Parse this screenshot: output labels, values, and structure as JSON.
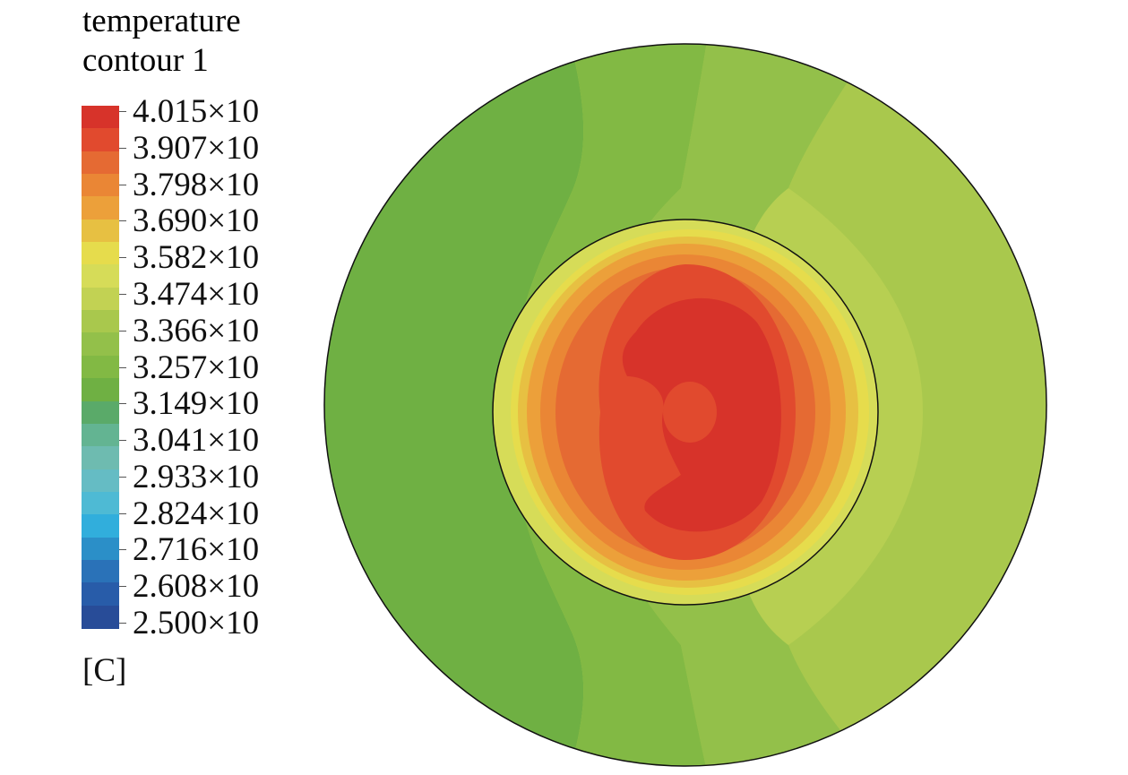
{
  "legend": {
    "title_line1": "temperature",
    "title_line2": "contour 1",
    "unit": "[C]"
  },
  "chart_data": {
    "type": "heatmap",
    "title": "temperature contour 1",
    "unit": "[C]",
    "range": [
      25.0,
      40.15
    ],
    "tick_labels": [
      "4.015×10",
      "3.907×10",
      "3.798×10",
      "3.690×10",
      "3.582×10",
      "3.474×10",
      "3.366×10",
      "3.257×10",
      "3.149×10",
      "3.041×10",
      "2.933×10",
      "2.824×10",
      "2.716×10",
      "2.608×10",
      "2.500×10"
    ],
    "colormap": [
      "#d7332a",
      "#e14a2e",
      "#e56a33",
      "#ea8635",
      "#eca03a",
      "#e7c042",
      "#e6dc4c",
      "#d6dc58",
      "#c2d253",
      "#a9c84d",
      "#93c04a",
      "#82b944",
      "#6fb043",
      "#5aaa69",
      "#63b492",
      "#6ebbb0",
      "#65bcc4",
      "#4ebad4",
      "#31aedc",
      "#2b8fc8",
      "#2a72b8",
      "#285ca9",
      "#284c98"
    ],
    "regions": [
      {
        "name": "outer annulus",
        "min": 32.57,
        "max": 35.82
      },
      {
        "name": "inner core",
        "min": 35.82,
        "max": 40.15
      }
    ]
  }
}
